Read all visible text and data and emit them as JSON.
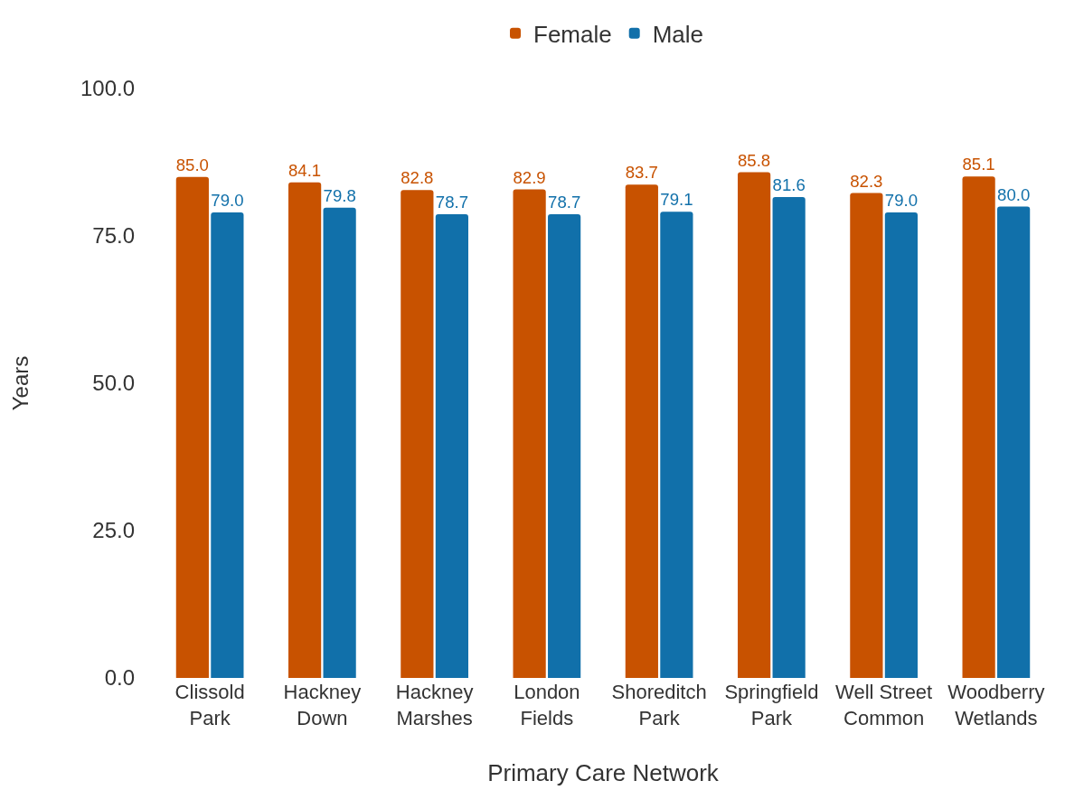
{
  "chart_data": {
    "type": "bar",
    "xlabel": "Primary Care Network",
    "ylabel": "Years",
    "categories": [
      "Clissold\nPark",
      "Hackney\nDown",
      "Hackney\nMarshes",
      "London\nFields",
      "Shoreditch\nPark",
      "Springfield\nPark",
      "Well Street\nCommon",
      "Woodberry\nWetlands"
    ],
    "series": [
      {
        "name": "Female",
        "color": "#c85200",
        "values": [
          85.0,
          84.1,
          82.8,
          82.9,
          83.7,
          85.8,
          82.3,
          85.1
        ],
        "value_labels": [
          "85.0",
          "84.1",
          "82.8",
          "82.9",
          "83.7",
          "85.8",
          "82.3",
          "85.1"
        ]
      },
      {
        "name": "Male",
        "color": "#1170aa",
        "values": [
          79.0,
          79.8,
          78.7,
          78.7,
          79.1,
          81.6,
          79.0,
          80.0
        ],
        "value_labels": [
          "79.0",
          "79.8",
          "78.7",
          "78.7",
          "79.1",
          "81.6",
          "79.0",
          "80.0"
        ]
      }
    ],
    "ylim": [
      0,
      100
    ],
    "yticks": [
      {
        "value": 0,
        "label": "0.0"
      },
      {
        "value": 25,
        "label": "25.0"
      },
      {
        "value": 50,
        "label": "50.0"
      },
      {
        "value": 75,
        "label": "75.0"
      },
      {
        "value": 100,
        "label": "100.0"
      }
    ],
    "grid": false,
    "legend": "top"
  }
}
